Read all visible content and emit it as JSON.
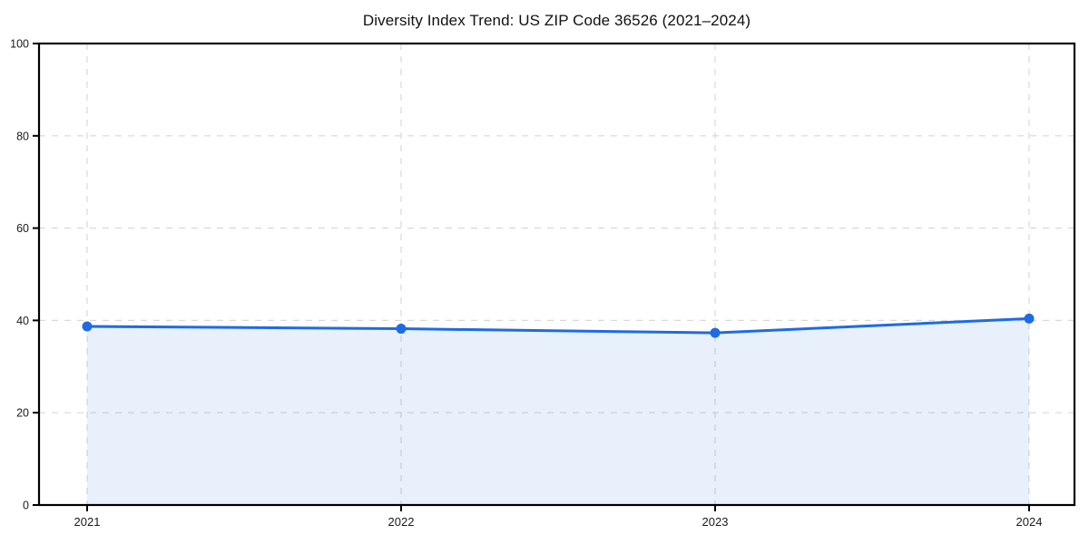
{
  "chart_data": {
    "type": "line",
    "title": "Diversity Index Trend: US ZIP Code 36526 (2021–2024)",
    "categories": [
      "2021",
      "2022",
      "2023",
      "2024"
    ],
    "values": [
      38.7,
      38.2,
      37.3,
      40.4
    ],
    "series_name": "Diversity Index",
    "xlabel": "",
    "ylabel": "",
    "ylim": [
      0,
      100
    ],
    "yticks": [
      0,
      20,
      40,
      60,
      80,
      100
    ],
    "grid": "dashed",
    "legend": "none",
    "style": {
      "line_color": "#1e6be4",
      "marker_color": "#1e6be4",
      "area_fill_color": "#1e6be4",
      "area_fill_opacity": 0.1,
      "gridline_color": "#d9d9d9",
      "axis_color": "#000000",
      "tick_label_color": "#1a1a1a",
      "background_color": "#ffffff"
    }
  }
}
